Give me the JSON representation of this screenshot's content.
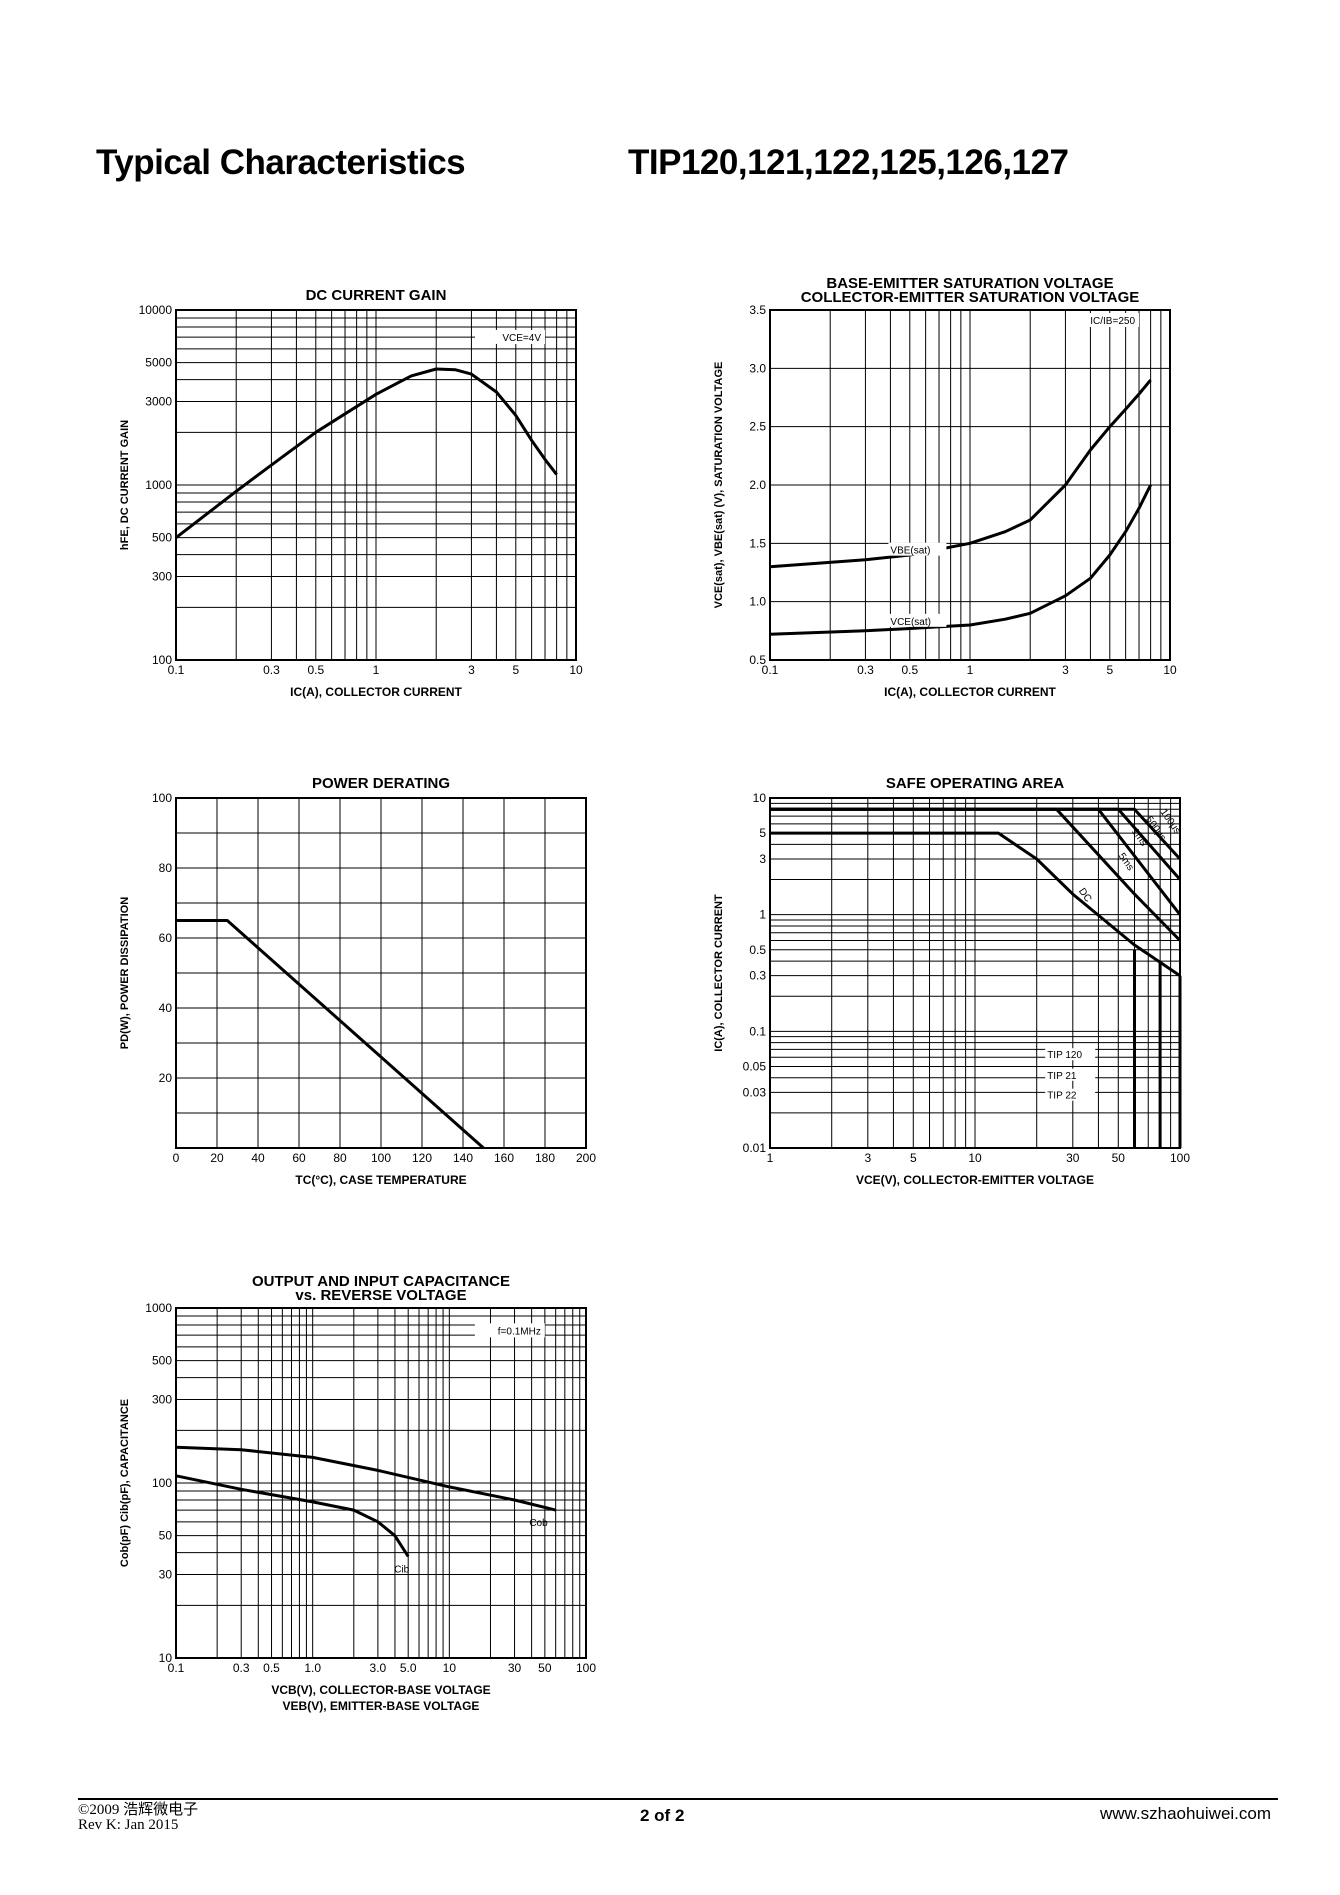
{
  "header": {
    "left": "Typical Characteristics",
    "right": "TIP120,121,122,125,126,127"
  },
  "footer": {
    "copyright": "©2009 浩辉微电子",
    "revision": "Rev K:  Jan  2015",
    "page": "2 of 2",
    "website": "www.szhaohuiwei.com"
  },
  "chart_data": [
    {
      "id": "dc-gain",
      "type": "line",
      "title": "DC CURRENT GAIN",
      "xlabel": "IC(A), COLLECTOR CURRENT",
      "ylabel": "hFE, DC CURRENT GAIN",
      "xscale": "log",
      "yscale": "log",
      "xlim": [
        0.1,
        10
      ],
      "ylim": [
        100,
        10000
      ],
      "xticks": [
        0.1,
        0.3,
        0.5,
        1,
        3,
        5,
        10
      ],
      "xtick_labels": [
        "0.1",
        "0.3",
        "0.5",
        "1",
        "3",
        "5",
        "10"
      ],
      "yticks": [
        100,
        300,
        500,
        1000,
        3000,
        5000,
        10000
      ],
      "ytick_labels": [
        "100",
        "300",
        "500",
        "1000",
        "3000",
        "5000",
        "10000"
      ],
      "annotations": [
        {
          "text": "VCE=4V",
          "x": 7.0,
          "y": 8000
        }
      ],
      "series": [
        {
          "name": "hFE",
          "x": [
            0.1,
            0.2,
            0.3,
            0.5,
            1,
            1.5,
            2,
            2.5,
            3,
            4,
            5,
            6,
            7,
            8
          ],
          "y": [
            500,
            920,
            1300,
            2000,
            3300,
            4200,
            4600,
            4550,
            4300,
            3400,
            2500,
            1800,
            1400,
            1150
          ]
        }
      ]
    },
    {
      "id": "sat-voltage",
      "type": "line",
      "title": "BASE-EMITTER SATURATION VOLTAGE",
      "title2": "COLLECTOR-EMITTER SATURATION VOLTAGE",
      "xlabel": "IC(A), COLLECTOR CURRENT",
      "ylabel": "VCE(sat), VBE(sat) (V), SATURATION VOLTAGE",
      "xscale": "log",
      "yscale": "linear",
      "xlim": [
        0.1,
        10
      ],
      "ylim": [
        0.5,
        3.5
      ],
      "xticks": [
        0.1,
        0.3,
        0.5,
        1,
        3,
        5,
        10
      ],
      "xtick_labels": [
        "0.1",
        "0.3",
        "0.5",
        "1",
        "3",
        "5",
        "10"
      ],
      "yticks": [
        0.5,
        1.0,
        1.5,
        2.0,
        2.5,
        3.0,
        3.5
      ],
      "ytick_labels": [
        "0.5",
        "1.0",
        "1.5",
        "2.0",
        "2.5",
        "3.0",
        "3.5"
      ],
      "annotations": [
        {
          "text": "IC/IB=250",
          "x": 7.0,
          "y": 3.5
        }
      ],
      "series": [
        {
          "name": "VBE(sat)",
          "x": [
            0.1,
            0.3,
            0.5,
            1,
            1.5,
            2,
            3,
            4,
            5,
            6,
            7,
            8
          ],
          "y": [
            1.3,
            1.36,
            1.4,
            1.5,
            1.6,
            1.7,
            2.0,
            2.3,
            2.5,
            2.65,
            2.78,
            2.9
          ]
        },
        {
          "name": "VCE(sat)",
          "x": [
            0.1,
            0.3,
            0.5,
            1,
            1.5,
            2,
            3,
            4,
            5,
            6,
            7,
            8
          ],
          "y": [
            0.72,
            0.75,
            0.77,
            0.8,
            0.85,
            0.9,
            1.05,
            1.2,
            1.4,
            1.6,
            1.8,
            2.0
          ]
        }
      ]
    },
    {
      "id": "power-derating",
      "type": "line",
      "title": "POWER DERATING",
      "xlabel": "TC(°C), CASE TEMPERATURE",
      "ylabel": "PD(W), POWER DISSIPATION",
      "xscale": "linear",
      "yscale": "linear",
      "xlim": [
        0,
        200
      ],
      "ylim": [
        0,
        100
      ],
      "xticks": [
        0,
        20,
        40,
        60,
        80,
        100,
        120,
        140,
        160,
        180,
        200
      ],
      "xtick_labels": [
        "0",
        "20",
        "40",
        "60",
        "80",
        "100",
        "120",
        "140",
        "160",
        "180",
        "200"
      ],
      "yticks": [
        20,
        40,
        60,
        80,
        100
      ],
      "ytick_labels": [
        "20",
        "40",
        "60",
        "80",
        "100"
      ],
      "series": [
        {
          "name": "PD",
          "x": [
            0,
            25,
            150
          ],
          "y": [
            65,
            65,
            0
          ]
        }
      ]
    },
    {
      "id": "soa",
      "type": "line",
      "title": "SAFE OPERATING AREA",
      "xlabel": "VCE(V), COLLECTOR-EMITTER VOLTAGE",
      "ylabel": "IC(A), COLLECTOR CURRENT",
      "xscale": "log",
      "yscale": "log",
      "xlim": [
        1,
        100
      ],
      "ylim": [
        0.01,
        10
      ],
      "xticks": [
        1,
        3,
        5,
        10,
        30,
        50,
        100
      ],
      "xtick_labels": [
        "1",
        "3",
        "5",
        "10",
        "30",
        "50",
        "100"
      ],
      "yticks": [
        0.01,
        0.03,
        0.05,
        0.1,
        0.3,
        0.5,
        1,
        3,
        5,
        10
      ],
      "ytick_labels": [
        "0.01",
        "0.03",
        "0.05",
        "0.1",
        "0.3",
        "0.5",
        "1",
        "3",
        "5",
        "10"
      ],
      "legend": [
        {
          "text": "TIP 120",
          "y": 0.06
        },
        {
          "text": "TIP 21",
          "y": 0.04
        },
        {
          "text": "TIP 22",
          "y": 0.027
        }
      ],
      "curve_labels": [
        "DC",
        "5ms",
        "1ms",
        "500μs",
        "100μs"
      ],
      "series": [
        {
          "name": "DC",
          "x": [
            1,
            13,
            20,
            30,
            60,
            100
          ],
          "y": [
            5,
            5,
            3,
            1.5,
            0.55,
            0.3
          ]
        },
        {
          "name": "5ms",
          "x": [
            1,
            25,
            60,
            100
          ],
          "y": [
            8,
            8,
            1.5,
            0.6
          ]
        },
        {
          "name": "1ms",
          "x": [
            1,
            40,
            100
          ],
          "y": [
            8,
            8,
            1.0
          ]
        },
        {
          "name": "500μs",
          "x": [
            1,
            50,
            100
          ],
          "y": [
            8,
            8,
            2.0
          ]
        },
        {
          "name": "100μs",
          "x": [
            1,
            60,
            100
          ],
          "y": [
            8,
            8,
            3.0
          ]
        },
        {
          "name": "TIP120 limit",
          "x": [
            60,
            60
          ],
          "y": [
            0.01,
            0.5
          ]
        },
        {
          "name": "TIP121 limit",
          "x": [
            80,
            80
          ],
          "y": [
            0.01,
            0.4
          ]
        },
        {
          "name": "TIP122 limit",
          "x": [
            100,
            100
          ],
          "y": [
            0.01,
            0.3
          ]
        }
      ]
    },
    {
      "id": "capacitance",
      "type": "line",
      "title": "OUTPUT AND INPUT CAPACITANCE",
      "title2": "vs. REVERSE VOLTAGE",
      "xlabel": "VCB(V), COLLECTOR-BASE VOLTAGE",
      "xlabel2": "VEB(V), EMITTER-BASE VOLTAGE",
      "ylabel": "Cob(pF) Cib(pF), CAPACITANCE",
      "xscale": "log",
      "yscale": "log",
      "xlim": [
        0.1,
        100
      ],
      "ylim": [
        10,
        1000
      ],
      "xticks": [
        0.1,
        0.3,
        0.5,
        1.0,
        3.0,
        5.0,
        10,
        30,
        50,
        100
      ],
      "xtick_labels": [
        "0.1",
        "0.3",
        "0.5",
        "1.0",
        "3.0",
        "5.0",
        "10",
        "30",
        "50",
        "100"
      ],
      "yticks": [
        10,
        30,
        50,
        100,
        300,
        500,
        1000
      ],
      "ytick_labels": [
        "10",
        "30",
        "50",
        "100",
        "300",
        "500",
        "1000"
      ],
      "annotations": [
        {
          "text": "f=0.1MHz",
          "x": 50,
          "y": 850
        }
      ],
      "series": [
        {
          "name": "Cob",
          "x": [
            0.1,
            0.3,
            1,
            3,
            10,
            30,
            60
          ],
          "y": [
            160,
            155,
            140,
            118,
            95,
            80,
            70
          ]
        },
        {
          "name": "Cib",
          "x": [
            0.1,
            0.3,
            1,
            2,
            3,
            4,
            5
          ],
          "y": [
            110,
            92,
            78,
            70,
            60,
            50,
            38
          ]
        }
      ]
    }
  ]
}
